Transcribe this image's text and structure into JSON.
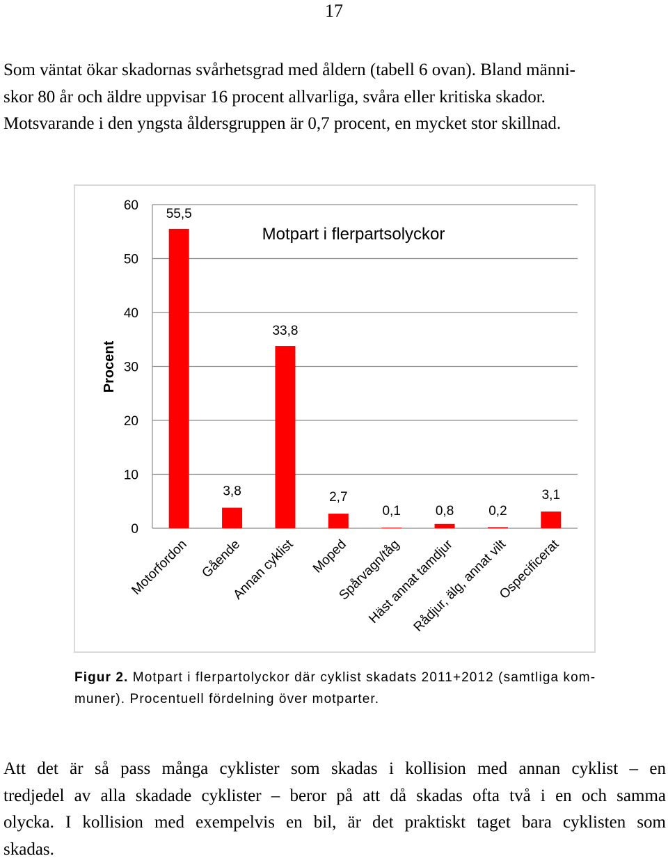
{
  "page_number": "17",
  "paragraph1": [
    "Som väntat ökar skadornas svårhetsgrad med åldern (tabell 6 ovan). Bland männi-",
    "skor 80 år och äldre uppvisar 16 procent allvarliga, svåra eller kritiska skador.",
    "Motsvarande i den yngsta åldersgruppen är 0,7 procent, en mycket stor skillnad."
  ],
  "chart_data": {
    "type": "bar",
    "title": "Motpart i flerpartsolyckor",
    "ylabel": "Procent",
    "xlabel": "",
    "ylim": [
      0,
      60
    ],
    "yticks": [
      "0",
      "10",
      "20",
      "30",
      "40",
      "50",
      "60"
    ],
    "grid": true,
    "legend": "none",
    "bar_color": "#ff0000",
    "categories": [
      "Motorfordon",
      "Gående",
      "Annan cyklist",
      "Moped",
      "Spårvagn/tåg",
      "Häst annat tamdjur",
      "Rådjur, älg, annat vilt",
      "Ospecificerat"
    ],
    "values": [
      55.5,
      3.8,
      33.8,
      2.7,
      0.1,
      0.8,
      0.2,
      3.1
    ],
    "data_labels": [
      "55,5",
      "3,8",
      "33,8",
      "2,7",
      "0,1",
      "0,8",
      "0,2",
      "3,1"
    ]
  },
  "caption": {
    "label": "Figur 2.",
    "line1_rest": " Motpart i flerpartolyckor där cyklist skadats 2011+2012 (samtliga kom-",
    "line2": "muner). Procentuell fördelning över motparter."
  },
  "paragraph2": [
    "Att det är så pass många cyklister som skadas i kollision med annan cyklist – en",
    "tredjedel av alla skadade cyklister – beror på att då skadas ofta två i en och samma",
    "olycka. I kollision med exempelvis en bil, är det praktiskt taget bara cyklisten som",
    "skadas."
  ]
}
